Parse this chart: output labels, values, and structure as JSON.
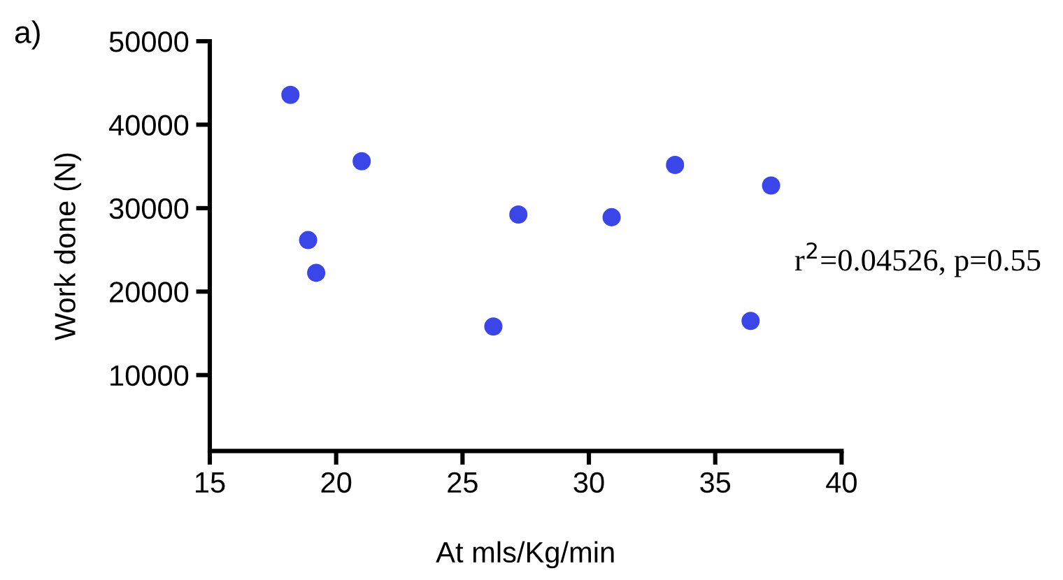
{
  "chart_data": {
    "type": "scatter",
    "xlabel": "At mls/Kg/min",
    "ylabel": "Work done (N)",
    "x": [
      18.19,
      18.89,
      19.21,
      21.01,
      26.22,
      27.21,
      30.9,
      33.41,
      36.4,
      37.21
    ],
    "series": [
      {
        "color": "#3b46e8",
        "values": [
          43570,
          26170,
          22250,
          35620,
          15820,
          29240,
          28910,
          35180,
          16490,
          32710
        ]
      }
    ],
    "xlim": [
      15,
      40
    ],
    "xticks": [
      15,
      20,
      25,
      30,
      35,
      40
    ],
    "ylim": [
      900,
      50000
    ],
    "yticks": [
      10000,
      20000,
      30000,
      40000,
      50000
    ],
    "marker": "circle",
    "grid": false,
    "legend": false,
    "annotations": [
      "a)",
      {
        "text": "r$^{2}$=0.04526, p=0.55"
      }
    ]
  }
}
